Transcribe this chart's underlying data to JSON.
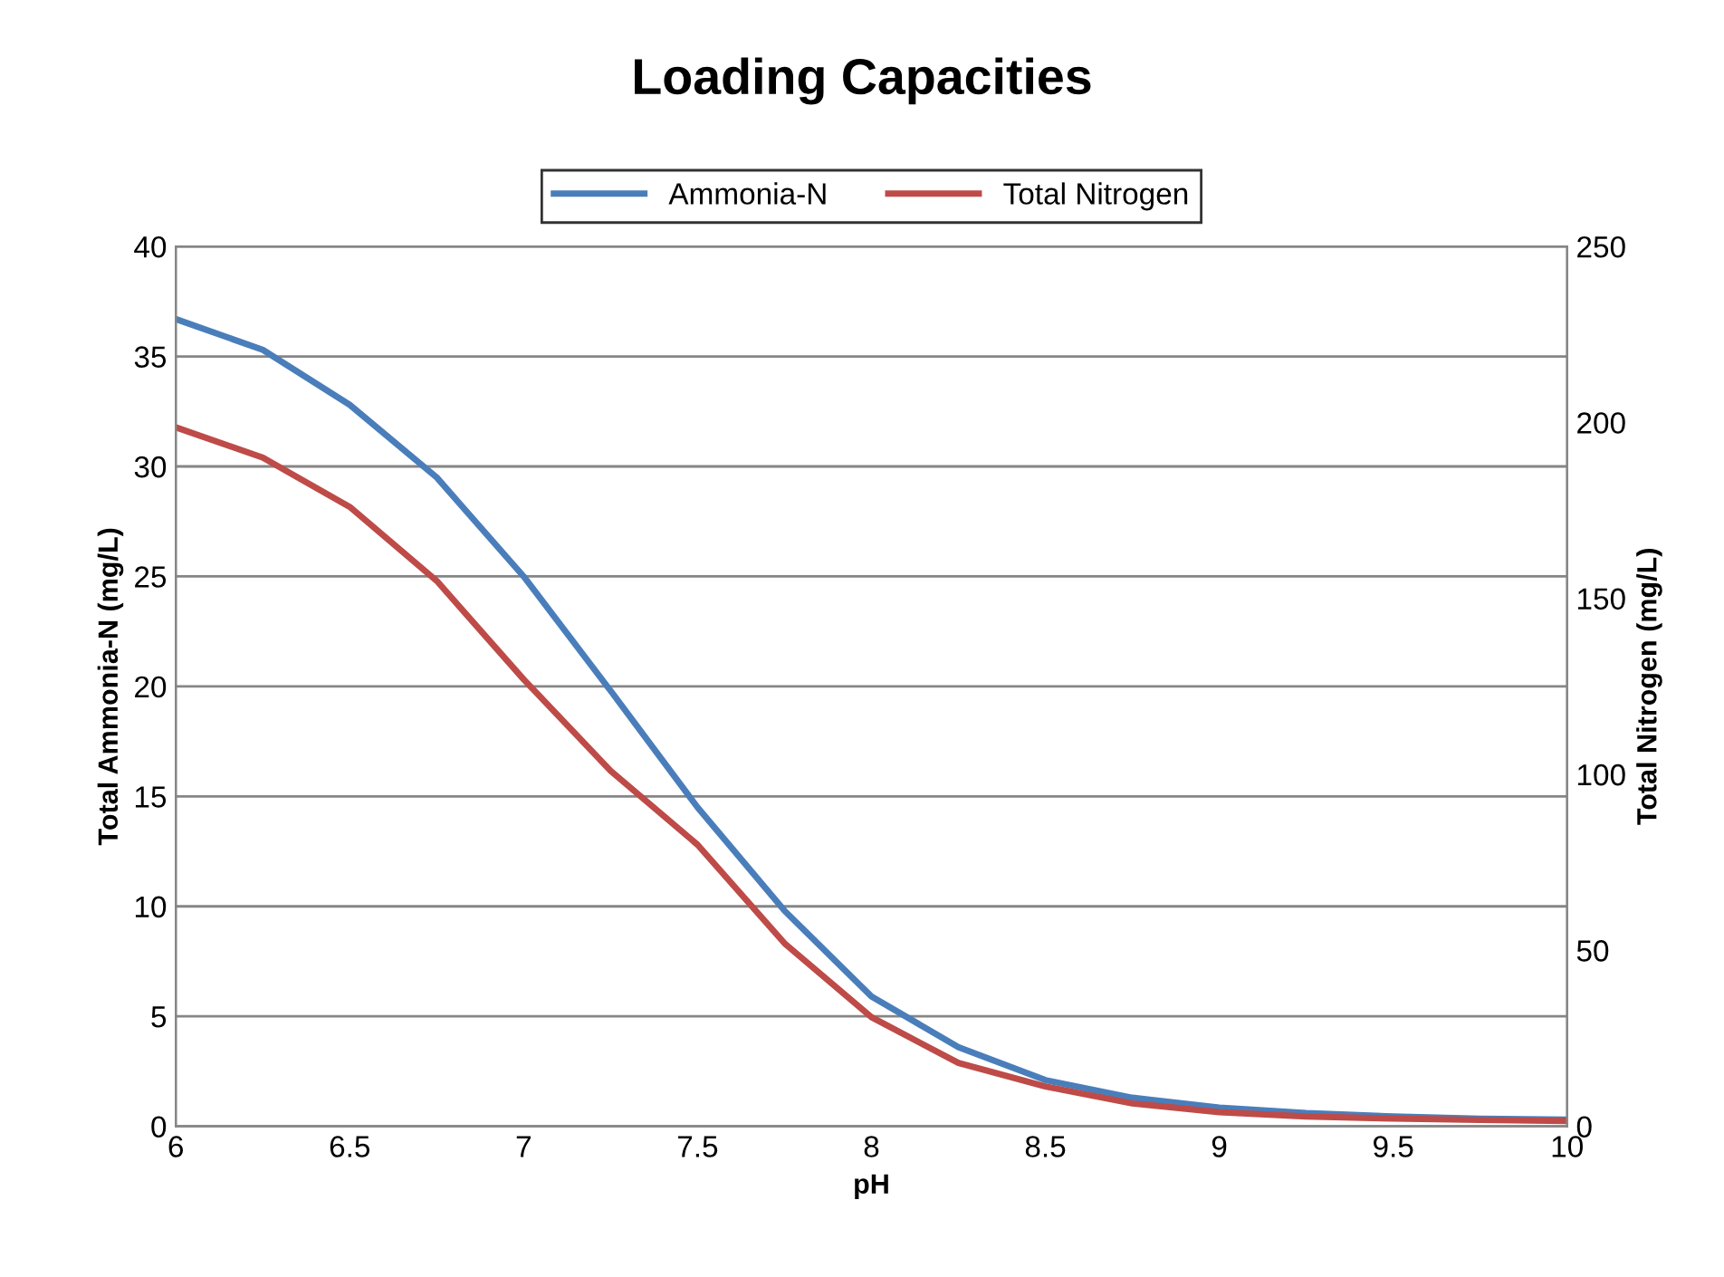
{
  "chart_data": {
    "type": "line",
    "title": "Loading Capacities",
    "xlabel": "pH",
    "ylabel": "Total Ammonia-N (mg/L)",
    "y2label": "Total Nitrogen (mg/L)",
    "x": [
      6,
      6.25,
      6.5,
      6.75,
      7,
      7.25,
      7.5,
      7.75,
      8,
      8.25,
      8.5,
      8.75,
      9,
      9.25,
      9.5,
      9.75,
      10
    ],
    "series": [
      {
        "name": "Ammonia-N",
        "color": "#4a7ebb",
        "values": [
          36.7,
          35.3,
          32.8,
          29.5,
          25.0,
          19.8,
          14.5,
          9.8,
          5.9,
          3.6,
          2.1,
          1.3,
          0.85,
          0.6,
          0.45,
          0.35,
          0.3
        ]
      },
      {
        "name": "Total Nitrogen",
        "color": "#be4b48",
        "axis": "y2",
        "values": [
          198.6,
          190,
          176,
          155,
          127,
          101,
          80,
          52,
          31,
          18,
          11.3,
          6.5,
          4,
          2.8,
          2.2,
          1.8,
          1.5
        ]
      }
    ],
    "xlim": [
      6,
      10
    ],
    "xticks": [
      6,
      6.5,
      7,
      7.5,
      8,
      8.5,
      9,
      9.5,
      10
    ],
    "ylim": [
      0,
      40
    ],
    "yticks": [
      0,
      5,
      10,
      15,
      20,
      25,
      30,
      35,
      40
    ],
    "y2lim": [
      0,
      250
    ],
    "y2ticks": [
      0,
      50,
      100,
      150,
      200,
      250
    ],
    "grid": "y",
    "legend": "top",
    "marker": "none",
    "line_style": "solid"
  }
}
